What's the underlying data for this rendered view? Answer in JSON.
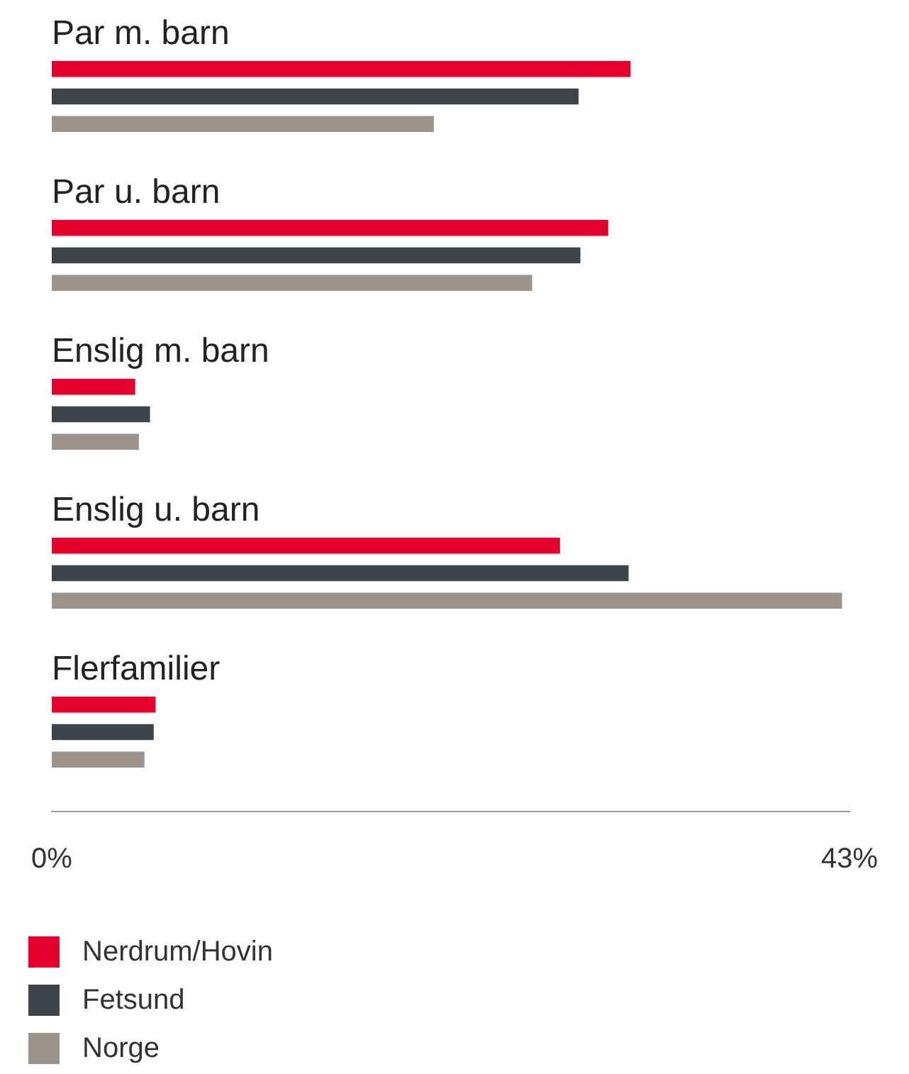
{
  "chart_data": {
    "type": "bar",
    "orientation": "horizontal",
    "categories": [
      "Par m. barn",
      "Par u. barn",
      "Enslig m. barn",
      "Enslig u. barn",
      "Flerfamilier"
    ],
    "series": [
      {
        "name": "Nerdrum/Hovin",
        "color": "#e4002b",
        "values": [
          31.2,
          30.0,
          4.5,
          27.4,
          5.6
        ]
      },
      {
        "name": "Fetsund",
        "color": "#3d4548",
        "values": [
          28.4,
          28.5,
          5.3,
          31.1,
          5.5
        ]
      },
      {
        "name": "Norge",
        "color": "#9b938c",
        "values": [
          20.6,
          25.9,
          4.7,
          42.6,
          5.0
        ]
      }
    ],
    "xlim": [
      0,
      43
    ],
    "xticks": [
      {
        "value": 0,
        "label": "0%"
      },
      {
        "value": 43,
        "label": "43%"
      }
    ],
    "grid": false,
    "legend": "bottom"
  }
}
